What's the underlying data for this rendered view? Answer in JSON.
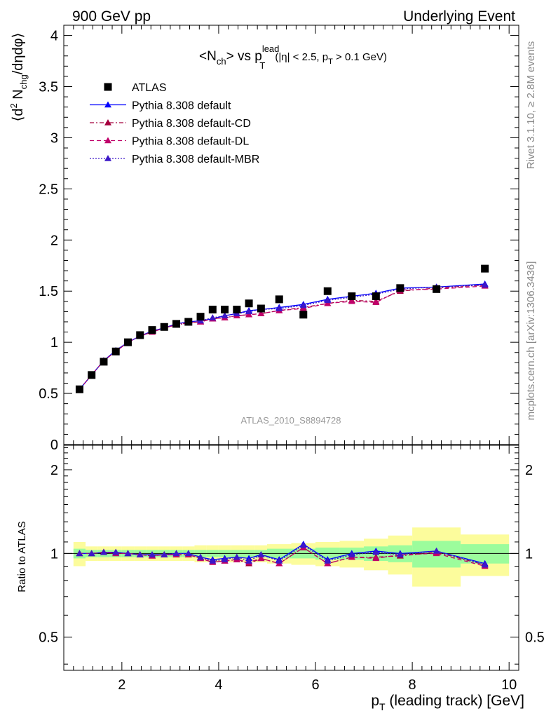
{
  "header": {
    "left": "900 GeV pp",
    "right": "Underlying Event"
  },
  "side_text": {
    "rivet": "Rivet 3.1.10, ≥ 2.8M events",
    "mcplots": "mcplots.cern.ch [arXiv:1306.3436]"
  },
  "chart_data": [
    {
      "type": "scatter",
      "panel": "main",
      "title": {
        "lt_n": "<N",
        "sub_ch": "ch",
        "gt_vs": "> vs p",
        "sup_lead": "lead",
        "sub_t": "T",
        "cuts_a": "(|η| < 2.5, p",
        "cuts_sub_t": "T",
        "cuts_b": " > 0.1 GeV)"
      },
      "ylabel": {
        "a": "⟨d",
        "sup_2": "2",
        "b": " N",
        "sub_chg": "chg",
        "c": "/dηdφ⟩"
      },
      "watermark": "ATLAS_2010_S8894728",
      "xlim": [
        0.8,
        10.2
      ],
      "ylim": [
        0,
        4.1
      ],
      "yticks": [
        0,
        0.5,
        1,
        1.5,
        2,
        2.5,
        3,
        3.5,
        4
      ],
      "ytick_labels": [
        "0",
        "0.5",
        "1",
        "1.5",
        "2",
        "2.5",
        "3",
        "3.5",
        "4"
      ],
      "legend_position": "top-left",
      "series": [
        {
          "name": "ATLAS",
          "marker": "square",
          "color": "#000000",
          "x": [
            1.125,
            1.375,
            1.625,
            1.875,
            2.125,
            2.375,
            2.625,
            2.875,
            3.125,
            3.375,
            3.625,
            3.875,
            4.125,
            4.375,
            4.625,
            4.875,
            5.25,
            5.75,
            6.25,
            6.75,
            7.25,
            7.75,
            8.5,
            9.5
          ],
          "y": [
            0.54,
            0.68,
            0.81,
            0.91,
            1.0,
            1.07,
            1.12,
            1.15,
            1.18,
            1.2,
            1.25,
            1.32,
            1.32,
            1.32,
            1.38,
            1.33,
            1.42,
            1.27,
            1.5,
            1.45,
            1.45,
            1.53,
            1.52,
            1.72
          ]
        },
        {
          "name": "Pythia 8.308 default",
          "color": "#0000ff",
          "dash": "",
          "x": [
            1.125,
            1.375,
            1.625,
            1.875,
            2.125,
            2.375,
            2.625,
            2.875,
            3.125,
            3.375,
            3.625,
            3.875,
            4.125,
            4.375,
            4.625,
            4.875,
            5.25,
            5.75,
            6.25,
            6.75,
            7.25,
            7.75,
            8.5,
            9.5
          ],
          "y": [
            0.54,
            0.68,
            0.82,
            0.92,
            1.0,
            1.06,
            1.11,
            1.14,
            1.18,
            1.2,
            1.21,
            1.23,
            1.26,
            1.28,
            1.31,
            1.32,
            1.34,
            1.37,
            1.42,
            1.45,
            1.48,
            1.53,
            1.54,
            1.57
          ]
        },
        {
          "name": "Pythia 8.308 default-CD",
          "color": "#a5003e",
          "dash": "6,3,2,3",
          "x": [
            1.125,
            1.375,
            1.625,
            1.875,
            2.125,
            2.375,
            2.625,
            2.875,
            3.125,
            3.375,
            3.625,
            3.875,
            4.125,
            4.375,
            4.625,
            4.875,
            5.25,
            5.75,
            6.25,
            6.75,
            7.25,
            7.75,
            8.5,
            9.5
          ],
          "y": [
            0.54,
            0.68,
            0.82,
            0.91,
            1.0,
            1.06,
            1.1,
            1.14,
            1.17,
            1.19,
            1.2,
            1.23,
            1.24,
            1.26,
            1.27,
            1.28,
            1.31,
            1.34,
            1.38,
            1.41,
            1.4,
            1.5,
            1.53,
            1.56
          ]
        },
        {
          "name": "Pythia 8.308 default-DL",
          "color": "#c0006a",
          "dash": "6,4",
          "x": [
            1.125,
            1.375,
            1.625,
            1.875,
            2.125,
            2.375,
            2.625,
            2.875,
            3.125,
            3.375,
            3.625,
            3.875,
            4.125,
            4.375,
            4.625,
            4.875,
            5.25,
            5.75,
            6.25,
            6.75,
            7.25,
            7.75,
            8.5,
            9.5
          ],
          "y": [
            0.54,
            0.68,
            0.82,
            0.91,
            1.0,
            1.06,
            1.1,
            1.14,
            1.17,
            1.19,
            1.2,
            1.23,
            1.24,
            1.26,
            1.27,
            1.28,
            1.31,
            1.33,
            1.38,
            1.4,
            1.39,
            1.51,
            1.52,
            1.55
          ]
        },
        {
          "name": "Pythia 8.308 default-MBR",
          "color": "#3d18c8",
          "dash": "2,2",
          "x": [
            1.125,
            1.375,
            1.625,
            1.875,
            2.125,
            2.375,
            2.625,
            2.875,
            3.125,
            3.375,
            3.625,
            3.875,
            4.125,
            4.375,
            4.625,
            4.875,
            5.25,
            5.75,
            6.25,
            6.75,
            7.25,
            7.75,
            8.5,
            9.5
          ],
          "y": [
            0.54,
            0.68,
            0.82,
            0.92,
            1.0,
            1.06,
            1.11,
            1.14,
            1.18,
            1.2,
            1.21,
            1.24,
            1.26,
            1.28,
            1.3,
            1.32,
            1.33,
            1.36,
            1.41,
            1.44,
            1.47,
            1.52,
            1.54,
            1.56
          ]
        }
      ]
    },
    {
      "type": "line",
      "panel": "ratio",
      "ylabel": "Ratio to ATLAS",
      "xlabel": {
        "p": "p",
        "sub_t": "T",
        "rest": " (leading track) [GeV]"
      },
      "xlim": [
        0.8,
        10.2
      ],
      "xticks": [
        2,
        4,
        6,
        8,
        10
      ],
      "xtick_labels": [
        "2",
        "4",
        "6",
        "8",
        "10"
      ],
      "ylim": [
        0.38,
        2.45
      ],
      "yticks": [
        0.5,
        1,
        2
      ],
      "ytick_labels": [
        "0.5",
        "1",
        "2"
      ],
      "bands": {
        "bin_edges": [
          1.0,
          1.25,
          1.5,
          1.75,
          2.0,
          2.25,
          2.5,
          2.75,
          3.0,
          3.25,
          3.5,
          3.75,
          4.0,
          4.25,
          4.5,
          4.75,
          5.0,
          5.5,
          6.0,
          6.5,
          7.0,
          7.5,
          8.0,
          9.0,
          10.0
        ],
        "inner_low": [
          0.96,
          0.97,
          0.97,
          0.97,
          0.97,
          0.97,
          0.97,
          0.97,
          0.97,
          0.97,
          0.97,
          0.97,
          0.97,
          0.97,
          0.97,
          0.97,
          0.96,
          0.96,
          0.95,
          0.95,
          0.94,
          0.93,
          0.89,
          0.92
        ],
        "inner_high": [
          1.04,
          1.03,
          1.03,
          1.03,
          1.03,
          1.03,
          1.03,
          1.03,
          1.03,
          1.03,
          1.03,
          1.03,
          1.03,
          1.03,
          1.03,
          1.03,
          1.04,
          1.04,
          1.05,
          1.05,
          1.06,
          1.07,
          1.11,
          1.08
        ],
        "outer_low": [
          0.9,
          0.94,
          0.94,
          0.94,
          0.94,
          0.94,
          0.94,
          0.94,
          0.94,
          0.94,
          0.93,
          0.93,
          0.93,
          0.93,
          0.93,
          0.93,
          0.92,
          0.91,
          0.9,
          0.89,
          0.87,
          0.84,
          0.76,
          0.83
        ],
        "outer_high": [
          1.1,
          1.06,
          1.06,
          1.06,
          1.06,
          1.06,
          1.06,
          1.06,
          1.06,
          1.06,
          1.07,
          1.07,
          1.07,
          1.07,
          1.07,
          1.07,
          1.08,
          1.09,
          1.1,
          1.11,
          1.13,
          1.16,
          1.24,
          1.17
        ],
        "inner_color": "#9cfc9c",
        "outer_color": "#fcfc9c"
      },
      "series": [
        {
          "name": "Pythia 8.308 default",
          "color": "#0000ff",
          "dash": "",
          "x": [
            1.125,
            1.375,
            1.625,
            1.875,
            2.125,
            2.375,
            2.625,
            2.875,
            3.125,
            3.375,
            3.625,
            3.875,
            4.125,
            4.375,
            4.625,
            4.875,
            5.25,
            5.75,
            6.25,
            6.75,
            7.25,
            7.75,
            8.5,
            9.5
          ],
          "y": [
            1.0,
            1.0,
            1.01,
            1.01,
            1.0,
            0.99,
            0.99,
            0.99,
            1.0,
            1.0,
            0.97,
            0.95,
            0.96,
            0.97,
            0.96,
            0.99,
            0.95,
            1.08,
            0.95,
            1.0,
            1.02,
            1.0,
            1.02,
            0.92
          ]
        },
        {
          "name": "Pythia 8.308 default-CD",
          "color": "#a5003e",
          "dash": "6,3,2,3",
          "x": [
            1.125,
            1.375,
            1.625,
            1.875,
            2.125,
            2.375,
            2.625,
            2.875,
            3.125,
            3.375,
            3.625,
            3.875,
            4.125,
            4.375,
            4.625,
            4.875,
            5.25,
            5.75,
            6.25,
            6.75,
            7.25,
            7.75,
            8.5,
            9.5
          ],
          "y": [
            1.0,
            1.0,
            1.01,
            1.0,
            1.0,
            0.99,
            0.98,
            0.99,
            0.99,
            0.99,
            0.96,
            0.93,
            0.94,
            0.95,
            0.92,
            0.96,
            0.92,
            1.05,
            0.92,
            0.97,
            0.97,
            0.98,
            1.01,
            0.91
          ]
        },
        {
          "name": "Pythia 8.308 default-DL",
          "color": "#c0006a",
          "dash": "6,4",
          "x": [
            1.125,
            1.375,
            1.625,
            1.875,
            2.125,
            2.375,
            2.625,
            2.875,
            3.125,
            3.375,
            3.625,
            3.875,
            4.125,
            4.375,
            4.625,
            4.875,
            5.25,
            5.75,
            6.25,
            6.75,
            7.25,
            7.75,
            8.5,
            9.5
          ],
          "y": [
            1.0,
            1.0,
            1.01,
            1.0,
            1.0,
            0.99,
            0.98,
            0.99,
            0.99,
            0.99,
            0.96,
            0.93,
            0.94,
            0.95,
            0.93,
            0.96,
            0.92,
            1.05,
            0.92,
            0.97,
            0.96,
            0.99,
            1.0,
            0.9
          ]
        },
        {
          "name": "Pythia 8.308 default-MBR",
          "color": "#3d18c8",
          "dash": "2,2",
          "x": [
            1.125,
            1.375,
            1.625,
            1.875,
            2.125,
            2.375,
            2.625,
            2.875,
            3.125,
            3.375,
            3.625,
            3.875,
            4.125,
            4.375,
            4.625,
            4.875,
            5.25,
            5.75,
            6.25,
            6.75,
            7.25,
            7.75,
            8.5,
            9.5
          ],
          "y": [
            1.0,
            1.0,
            1.01,
            1.01,
            1.0,
            0.99,
            0.99,
            0.99,
            1.0,
            1.0,
            0.97,
            0.94,
            0.95,
            0.97,
            0.94,
            0.99,
            0.94,
            1.07,
            0.94,
            0.99,
            1.01,
            0.99,
            1.02,
            0.91
          ]
        }
      ]
    }
  ]
}
